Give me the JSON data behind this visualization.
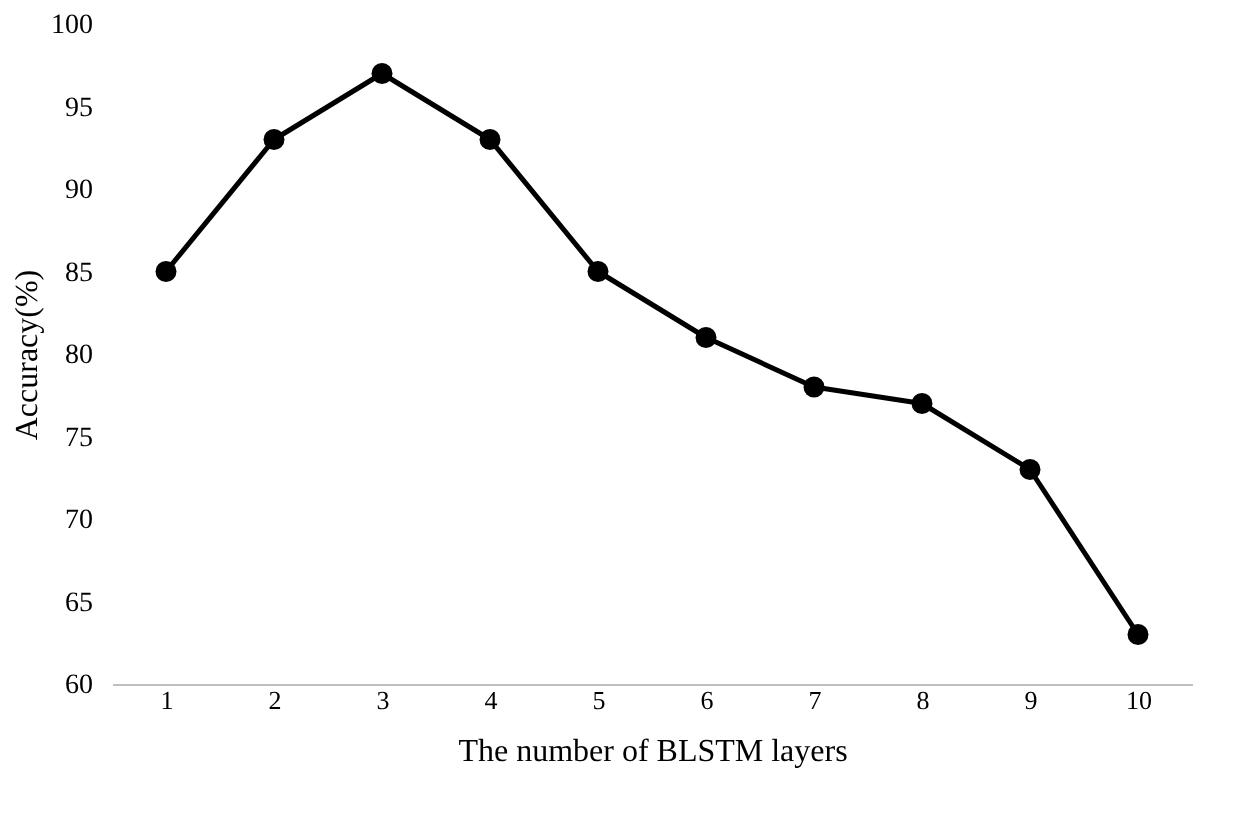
{
  "chart_data": {
    "type": "line",
    "xlabel": "The number of BLSTM layers",
    "ylabel": "Accuracy(%)",
    "categories": [
      "1",
      "2",
      "3",
      "4",
      "5",
      "6",
      "7",
      "8",
      "9",
      "10"
    ],
    "series": [
      {
        "color": "#000000",
        "values": [
          85,
          93,
          97,
          93,
          85,
          81,
          78,
          77,
          73,
          63
        ]
      }
    ],
    "ylim": [
      60,
      100
    ],
    "yticks": [
      60,
      65,
      70,
      75,
      80,
      85,
      90,
      95,
      100
    ],
    "grid": false,
    "marker": "circle",
    "line_style": "solid"
  }
}
